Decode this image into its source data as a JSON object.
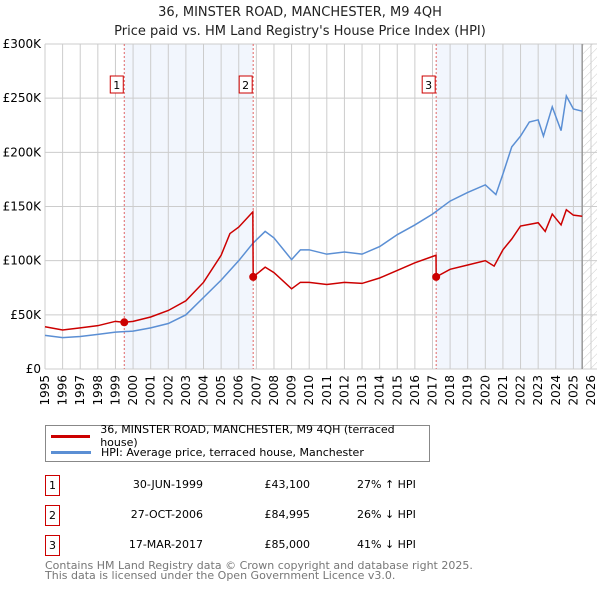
{
  "chart_data": {
    "type": "line",
    "title": "36, MINSTER ROAD, MANCHESTER, M9 4QH",
    "subtitle": "Price paid vs. HM Land Registry's House Price Index (HPI)",
    "xlim": [
      1995,
      2026
    ],
    "ylim": [
      0,
      300000
    ],
    "x_ticks": [
      "1995",
      "1996",
      "1997",
      "1998",
      "1999",
      "2000",
      "2001",
      "2002",
      "2003",
      "2004",
      "2005",
      "2006",
      "2007",
      "2008",
      "2009",
      "2010",
      "2011",
      "2012",
      "2013",
      "2014",
      "2015",
      "2016",
      "2017",
      "2018",
      "2019",
      "2020",
      "2021",
      "2022",
      "2023",
      "2024",
      "2025",
      "2026"
    ],
    "y_ticks": [
      {
        "v": 0,
        "label": "£0"
      },
      {
        "v": 50000,
        "label": "£50K"
      },
      {
        "v": 100000,
        "label": "£100K"
      },
      {
        "v": 150000,
        "label": "£150K"
      },
      {
        "v": 200000,
        "label": "£200K"
      },
      {
        "v": 250000,
        "label": "£250K"
      },
      {
        "v": 300000,
        "label": "£300K"
      }
    ],
    "grid": true,
    "forecast_from": 2025.5,
    "series": [
      {
        "name": "36, MINSTER ROAD, MANCHESTER, M9 4QH (terraced house)",
        "color": "#cc0000",
        "x": [
          1995,
          1996,
          1997,
          1998,
          1999,
          1999.5,
          2000,
          2001,
          2002,
          2003,
          2004,
          2005,
          2005.5,
          2006,
          2006.8,
          2006.82,
          2007.5,
          2008,
          2009,
          2009.5,
          2010,
          2011,
          2012,
          2013,
          2014,
          2015,
          2016,
          2017.2,
          2017.21,
          2018,
          2019,
          2020,
          2020.5,
          2021,
          2021.5,
          2022,
          2023,
          2023.4,
          2023.8,
          2024.3,
          2024.6,
          2025,
          2025.5
        ],
        "y": [
          39000,
          36000,
          38000,
          40000,
          44000,
          43100,
          44000,
          48000,
          54000,
          63000,
          80000,
          105000,
          125000,
          131000,
          145000,
          85000,
          94000,
          89000,
          74000,
          80000,
          80000,
          78000,
          80000,
          79000,
          84000,
          91000,
          98000,
          105000,
          85000,
          92000,
          96000,
          100000,
          95000,
          110000,
          120000,
          132000,
          135000,
          127000,
          143000,
          133000,
          147000,
          142000,
          141000
        ]
      },
      {
        "name": "HPI: Average price, terraced house, Manchester",
        "color": "#5b8fd4",
        "x": [
          1995,
          1996,
          1997,
          1998,
          1999,
          2000,
          2001,
          2002,
          2003,
          2004,
          2005,
          2006,
          2006.8,
          2007.5,
          2008,
          2009,
          2009.5,
          2010,
          2011,
          2012,
          2013,
          2014,
          2015,
          2016,
          2017,
          2018,
          2019,
          2020,
          2020.6,
          2021,
          2021.5,
          2022,
          2022.5,
          2023,
          2023.3,
          2023.8,
          2024.3,
          2024.6,
          2025,
          2025.5
        ],
        "y": [
          31000,
          29000,
          30000,
          32000,
          34000,
          35000,
          38000,
          42000,
          50000,
          66000,
          82000,
          100000,
          116000,
          127000,
          121000,
          101000,
          110000,
          110000,
          106000,
          108000,
          106000,
          113000,
          124000,
          133000,
          143000,
          155000,
          163000,
          170000,
          161000,
          180000,
          205000,
          215000,
          228000,
          230000,
          215000,
          242000,
          220000,
          252000,
          240000,
          238000
        ]
      }
    ],
    "sales": [
      {
        "n": "1",
        "x": 1999.5,
        "y": 43100,
        "date": "30-JUN-1999",
        "price": "£43,100",
        "hpi": "27% ↑ HPI"
      },
      {
        "n": "2",
        "x": 2006.82,
        "y": 84995,
        "date": "27-OCT-2006",
        "price": "£84,995",
        "hpi": "26% ↓ HPI"
      },
      {
        "n": "3",
        "x": 2017.21,
        "y": 85000,
        "date": "17-MAR-2017",
        "price": "£85,000",
        "hpi": "41% ↓ HPI"
      }
    ]
  },
  "footer": [
    "Contains HM Land Registry data © Crown copyright and database right 2025.",
    "This data is licensed under the Open Government Licence v3.0."
  ]
}
